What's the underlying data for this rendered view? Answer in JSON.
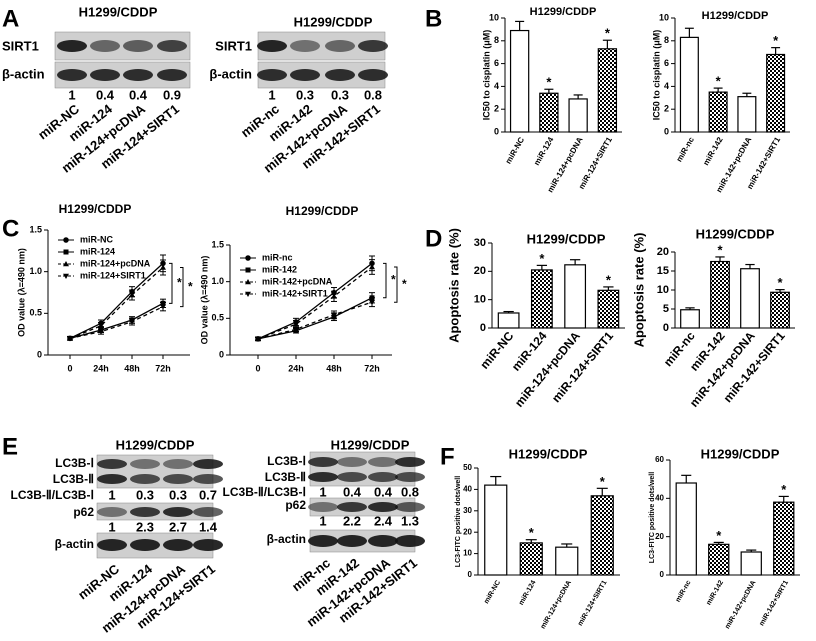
{
  "panel_labels": [
    "A",
    "B",
    "C",
    "D",
    "E",
    "F"
  ],
  "blots": [
    {
      "title": "H1299/CDDP",
      "labels": [
        "SIRT1",
        "β-actin"
      ],
      "ratios": [
        [
          1,
          0.4,
          0.4,
          0.9
        ]
      ],
      "categories": [
        "miR-NC",
        "miR-124",
        "miR-124+pcDNA",
        "miR-124+SIRT1"
      ]
    },
    {
      "title": "H1299/CDDP",
      "labels": [
        "SIRT1",
        "β-actin"
      ],
      "ratios": [
        [
          1,
          0.3,
          0.3,
          0.8
        ]
      ],
      "categories": [
        "miR-nc",
        "miR-142",
        "miR-142+pcDNA",
        "miR-142+SIRT1"
      ]
    },
    {
      "title": "H1299/CDDP",
      "labels": [
        "LC3B-Ⅰ",
        "LC3B-Ⅱ",
        "LC3B-Ⅱ/LC3B-Ⅰ",
        "p62",
        "β-actin"
      ],
      "ratios": [
        [
          1,
          0.3,
          0.3,
          0.7
        ],
        [
          1,
          2.3,
          2.7,
          1.4
        ]
      ],
      "categories": [
        "miR-NC",
        "miR-124",
        "miR-124+pcDNA",
        "miR-124+SIRT1"
      ]
    },
    {
      "title": "H1299/CDDP",
      "labels": [
        "LC3B-Ⅰ",
        "LC3B-Ⅱ",
        "LC3B-Ⅱ/LC3B-Ⅰ",
        "p62",
        "β-actin"
      ],
      "ratios": [
        [
          1,
          0.4,
          0.4,
          0.8
        ],
        [
          1,
          2.2,
          2.4,
          1.3
        ]
      ],
      "categories": [
        "miR-nc",
        "miR-142",
        "miR-142+pcDNA",
        "miR-142+SIRT1"
      ]
    }
  ],
  "chart_data": [
    {
      "type": "bar",
      "title": "H1299/CDDP",
      "ylabel": "IC50 to cisplatin (μM)",
      "categories": [
        "miR-NC",
        "miR-124",
        "miR-124+pcDNA",
        "miR-124+SIRT1"
      ],
      "values": [
        8.9,
        3.4,
        2.9,
        7.3
      ],
      "errors": [
        0.8,
        0.35,
        0.35,
        0.75
      ],
      "patterns": [
        "none",
        "checker",
        "none",
        "checker"
      ],
      "significance": [
        null,
        "*",
        null,
        "*"
      ],
      "ylim": [
        0,
        10
      ],
      "yticks": [
        0,
        2,
        4,
        6,
        8,
        10
      ]
    },
    {
      "type": "bar",
      "title": "H1299/CDDP",
      "ylabel": "IC50 to cisplatin (μM)",
      "categories": [
        "miR-nc",
        "miR-142",
        "miR-142+pcDNA",
        "miR-142+SIRT1"
      ],
      "values": [
        8.3,
        3.5,
        3.1,
        6.8
      ],
      "errors": [
        0.8,
        0.35,
        0.3,
        0.6
      ],
      "patterns": [
        "none",
        "checker",
        "none",
        "checker"
      ],
      "significance": [
        null,
        "*",
        null,
        "*"
      ],
      "ylim": [
        0,
        10
      ],
      "yticks": [
        0,
        2,
        4,
        6,
        8,
        10
      ]
    },
    {
      "type": "line",
      "title": "H1299/CDDP",
      "ylabel": "OD value (λ=490 nm)",
      "categories": [
        "0",
        "24h",
        "48h",
        "72h"
      ],
      "legend": "upper left",
      "annotations": [
        "*",
        "*"
      ],
      "series": [
        {
          "name": "miR-NC",
          "color": "#000000",
          "marker": "circle",
          "dash": false,
          "values": [
            0.2,
            0.38,
            0.76,
            1.1
          ],
          "errors": [
            0.02,
            0.04,
            0.06,
            0.1
          ]
        },
        {
          "name": "miR-124",
          "color": "#000000",
          "marker": "square",
          "dash": false,
          "values": [
            0.2,
            0.3,
            0.42,
            0.62
          ],
          "errors": [
            0.02,
            0.03,
            0.04,
            0.05
          ]
        },
        {
          "name": "miR-124+pcDNA",
          "color": "#000000",
          "marker": "triangle",
          "dash": true,
          "values": [
            0.2,
            0.35,
            0.72,
            1.05
          ],
          "errors": [
            0.02,
            0.04,
            0.06,
            0.09
          ]
        },
        {
          "name": "miR-124+SIRT1",
          "color": "#000000",
          "marker": "triangle-down",
          "dash": true,
          "values": [
            0.2,
            0.28,
            0.4,
            0.58
          ],
          "errors": [
            0.02,
            0.03,
            0.04,
            0.05
          ]
        }
      ],
      "ylim": [
        0,
        1.5
      ],
      "yticks": [
        0,
        0.5,
        {
          "value": 1,
          "label": "1.0"
        },
        1.5
      ]
    },
    {
      "type": "line",
      "title": "H1299/CDDP",
      "ylabel": "OD value (λ=490 nm)",
      "categories": [
        "0",
        "24h",
        "48h",
        "72h"
      ],
      "legend": "upper left",
      "annotations": [
        "*",
        "*"
      ],
      "series": [
        {
          "name": "miR-nc",
          "color": "#000000",
          "marker": "circle",
          "dash": false,
          "values": [
            0.22,
            0.45,
            0.85,
            1.25
          ],
          "errors": [
            0.02,
            0.05,
            0.07,
            0.1
          ]
        },
        {
          "name": "miR-142",
          "color": "#000000",
          "marker": "square",
          "dash": false,
          "values": [
            0.22,
            0.33,
            0.52,
            0.78
          ],
          "errors": [
            0.02,
            0.03,
            0.05,
            0.07
          ]
        },
        {
          "name": "miR-142+pcDNA",
          "color": "#000000",
          "marker": "triangle",
          "dash": true,
          "values": [
            0.22,
            0.42,
            0.8,
            1.2
          ],
          "errors": [
            0.02,
            0.05,
            0.07,
            0.1
          ]
        },
        {
          "name": "miR-142+SIRT1",
          "color": "#000000",
          "marker": "triangle-down",
          "dash": true,
          "values": [
            0.22,
            0.35,
            0.55,
            0.72
          ],
          "errors": [
            0.02,
            0.03,
            0.05,
            0.06
          ]
        }
      ],
      "ylim": [
        0,
        1.5
      ],
      "yticks": [
        0,
        0.5,
        {
          "value": 1,
          "label": "1.0"
        },
        1.5
      ]
    },
    {
      "type": "bar",
      "title": "H1299/CDDP",
      "ylabel": "Apoptosis rate (%)",
      "categories": [
        "miR-NC",
        "miR-124",
        "miR-124+pcDNA",
        "miR-124+SIRT1"
      ],
      "values": [
        5.3,
        20.5,
        22.3,
        13.3
      ],
      "errors": [
        0.5,
        1.6,
        1.8,
        1.2
      ],
      "patterns": [
        "none",
        "checker",
        "none",
        "checker"
      ],
      "significance": [
        null,
        "*",
        null,
        "*"
      ],
      "ylim": [
        0,
        30
      ],
      "yticks": [
        0,
        10,
        20,
        30
      ]
    },
    {
      "type": "bar",
      "title": "H1299/CDDP",
      "ylabel": "Apoptosis rate (%)",
      "categories": [
        "miR-nc",
        "miR-142",
        "miR-142+pcDNA",
        "miR-142+SIRT1"
      ],
      "values": [
        4.8,
        17.5,
        15.6,
        9.4
      ],
      "errors": [
        0.5,
        1.2,
        1.1,
        0.7
      ],
      "patterns": [
        "none",
        "checker",
        "none",
        "checker"
      ],
      "significance": [
        null,
        "*",
        null,
        "*"
      ],
      "ylim": [
        0,
        20
      ],
      "yticks": [
        0,
        5,
        10,
        15,
        20
      ]
    },
    {
      "type": "bar",
      "title": "H1299/CDDP",
      "ylabel": "LC3-FITC positive dots/well",
      "categories": [
        "miR-NC",
        "miR-124",
        "miR-124+pcDNA",
        "miR-124+SIRT1"
      ],
      "values": [
        42,
        15,
        13,
        37
      ],
      "errors": [
        4,
        1.5,
        1.5,
        3.5
      ],
      "patterns": [
        "none",
        "checker",
        "none",
        "checker"
      ],
      "significance": [
        null,
        "*",
        null,
        "*"
      ],
      "ylim": [
        0,
        50
      ],
      "yticks": [
        0,
        10,
        20,
        30,
        40,
        50
      ]
    },
    {
      "type": "bar",
      "title": "H1299/CDDP",
      "ylabel": "LC3-FITC positive dots/well",
      "categories": [
        "miR-nc",
        "miR-142",
        "miR-142+pcDNA",
        "miR-142+SIRT1"
      ],
      "values": [
        48,
        16,
        12,
        38
      ],
      "errors": [
        4,
        1,
        1,
        3
      ],
      "patterns": [
        "none",
        "checker",
        "none",
        "checker"
      ],
      "significance": [
        null,
        "*",
        null,
        "*"
      ],
      "ylim": [
        0,
        60
      ],
      "yticks": [
        0,
        20,
        40,
        60
      ]
    }
  ]
}
